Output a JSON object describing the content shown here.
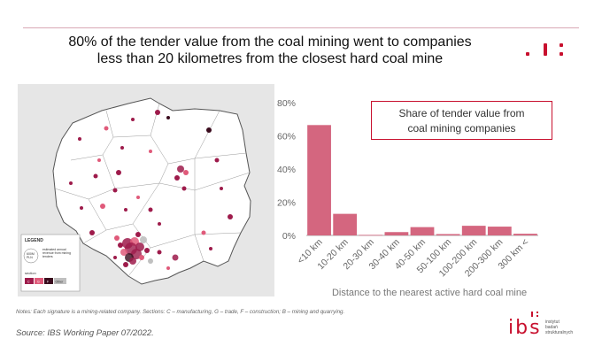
{
  "title": {
    "line1": "80% of the tender value from the coal mining went to companies",
    "line2": "less than 20 kilometres from the closest hard coal mine"
  },
  "map": {
    "legend_title": "LEGEND",
    "legend_size_label": "estimated annual revenue from mining tenders",
    "legend_value_top": "600M",
    "legend_value_bottom": "PLN",
    "legend_section_title": "section",
    "sections": [
      "C",
      "G",
      "F",
      "Other"
    ],
    "colors": {
      "background": "#e6e6e6",
      "country": "#ffffff",
      "borders": "#8c8c8c",
      "dot_c": "#9e1b4b",
      "dot_g": "#e05a7a",
      "dot_f": "#3a0b1d",
      "dot_other": "#c0c0c0"
    }
  },
  "chart_data": {
    "type": "bar",
    "title": "Share of tender value from coal mining companies",
    "xlabel": "Distance to the nearest active hard coal mine",
    "ylabel": "",
    "categories": [
      "<10 km",
      "10-20 km",
      "20-30 km",
      "30-40 km",
      "40-50 km",
      "50-100 km",
      "100-200 km",
      "200-300 km",
      "300 km <"
    ],
    "values": [
      66.5,
      13,
      0.3,
      2,
      5,
      0.8,
      5.8,
      5.3,
      1
    ],
    "ylim": [
      0,
      80
    ],
    "yticks": [
      "0%",
      "20%",
      "40%",
      "60%",
      "80%"
    ],
    "ytick_values": [
      0,
      20,
      40,
      60,
      80
    ],
    "bar_color": "#d4667f",
    "grid": false,
    "legend": "none"
  },
  "footer": {
    "notes": "Notes: Each signature is a mining-related company. Sections: C – manufacturing, G – trade, F – construction; B – mining and quarrying.",
    "source": "Source: IBS Working Paper 07/2022.",
    "logo_text": "ibs",
    "logo_sub": [
      "instytut",
      "badań",
      "strukturalnych"
    ]
  },
  "accent_color": "#c8102e"
}
